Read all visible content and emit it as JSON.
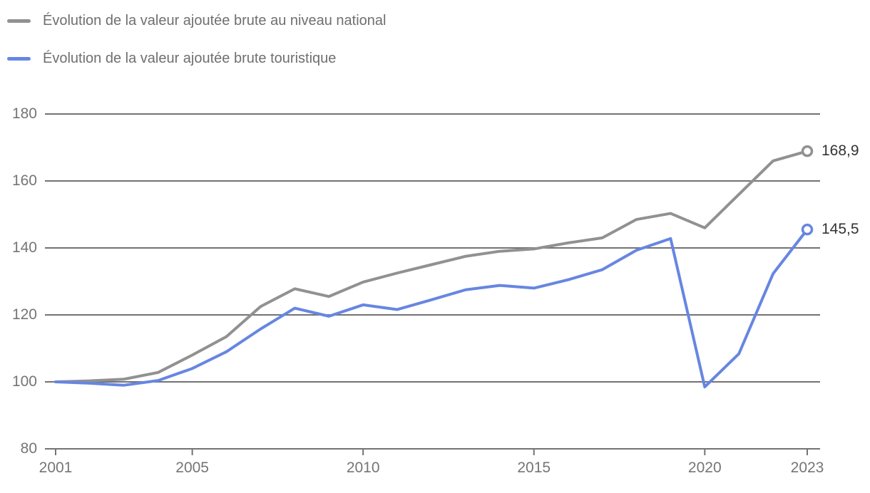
{
  "chart_data": {
    "type": "line",
    "title": "",
    "x": [
      2001,
      2002,
      2003,
      2004,
      2005,
      2006,
      2007,
      2008,
      2009,
      2010,
      2011,
      2012,
      2013,
      2014,
      2015,
      2016,
      2017,
      2018,
      2019,
      2020,
      2021,
      2022,
      2023
    ],
    "series": [
      {
        "name": "Évolution de la valeur ajoutée brute au niveau national",
        "color": "#919191",
        "values": [
          100,
          100.3,
          100.8,
          102.8,
          108,
          113.5,
          122.5,
          127.8,
          125.5,
          129.8,
          132.5,
          135,
          137.5,
          139,
          139.7,
          141.5,
          143,
          148.5,
          150.3,
          146,
          156,
          166,
          168.9
        ],
        "end_label": "168,9"
      },
      {
        "name": "Évolution de la valeur ajoutée brute touristique",
        "color": "#6786e2",
        "values": [
          100,
          99.6,
          99,
          100.4,
          104,
          109,
          115.8,
          122,
          119.6,
          123,
          121.6,
          124.5,
          127.5,
          128.8,
          128,
          130.5,
          133.5,
          139.3,
          142.8,
          98.5,
          108.4,
          132.3,
          145.5
        ],
        "end_label": "145,5"
      }
    ],
    "ylim": [
      80,
      180
    ],
    "y_ticks": [
      80,
      100,
      120,
      140,
      160,
      180
    ],
    "x_ticks": [
      2001,
      2005,
      2010,
      2015,
      2020,
      2023
    ],
    "grid": "horizontal",
    "legend_position": "top-left",
    "marker": "open-circle-at-last-point",
    "colors": {
      "gridline": "#737373",
      "axis_text": "#757575",
      "legend_text": "#6f6f6f",
      "value_label_text": "#333333",
      "background": "#ffffff"
    }
  }
}
